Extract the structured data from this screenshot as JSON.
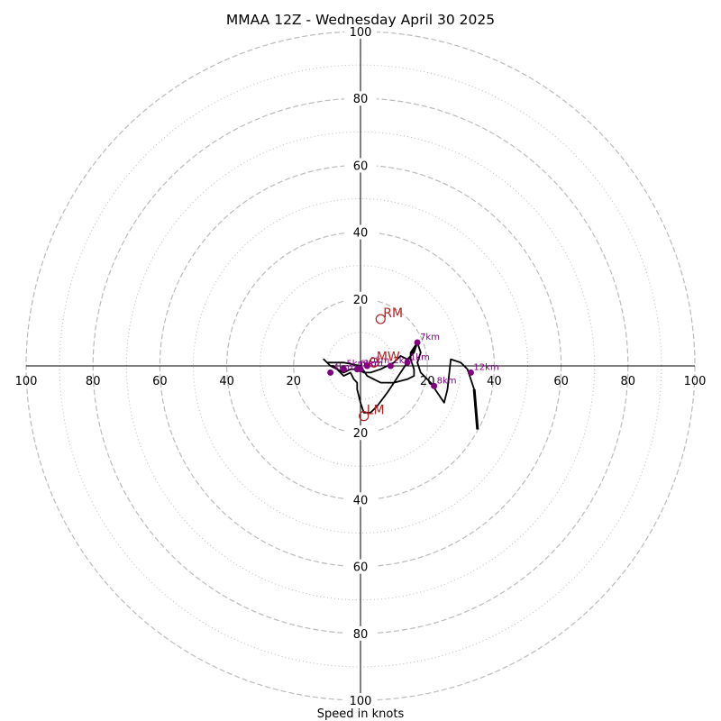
{
  "chart_data": {
    "type": "hodograph",
    "title": "MMAA 12Z - Wednesday April 30 2025",
    "xlabel": "Speed in knots",
    "max_speed": 100,
    "rings_dashed": [
      20,
      40,
      60,
      80,
      100
    ],
    "rings_dotted": [
      10,
      30,
      50,
      70,
      90
    ],
    "tick_labels": [
      "20",
      "40",
      "60",
      "80",
      "100"
    ],
    "hodograph": [
      [
        -11,
        2
      ],
      [
        -10,
        1
      ],
      [
        -9,
        0
      ],
      [
        -8,
        0
      ],
      [
        -7,
        -1
      ],
      [
        -5,
        -3
      ],
      [
        -3,
        -2
      ],
      [
        -2,
        -4
      ],
      [
        -1,
        -5
      ],
      [
        -1,
        -7
      ],
      [
        0,
        -11
      ],
      [
        1,
        -14
      ],
      [
        3,
        -14
      ],
      [
        5,
        -12
      ],
      [
        8,
        -8
      ],
      [
        10,
        -5
      ],
      [
        12,
        -2
      ],
      [
        14,
        1
      ],
      [
        15,
        3
      ],
      [
        16,
        5
      ],
      [
        17,
        7
      ],
      [
        16,
        4
      ],
      [
        14,
        2
      ],
      [
        12,
        3
      ],
      [
        10,
        1
      ],
      [
        8,
        0
      ],
      [
        6,
        -1
      ],
      [
        3,
        -2
      ],
      [
        1,
        -2
      ],
      [
        -1,
        -1
      ],
      [
        -3,
        -1
      ],
      [
        -5,
        -2
      ],
      [
        -7,
        -1
      ],
      [
        -9,
        0
      ],
      [
        -10,
        1
      ],
      [
        -11,
        2
      ],
      [
        -10,
        1
      ],
      [
        -5,
        1
      ],
      [
        0,
        0
      ],
      [
        2,
        -3
      ],
      [
        6,
        -5
      ],
      [
        10,
        -5
      ],
      [
        14,
        -4
      ],
      [
        16,
        -3
      ],
      [
        16,
        -1
      ],
      [
        15,
        2
      ],
      [
        15,
        4
      ],
      [
        17,
        7
      ],
      [
        18,
        4
      ],
      [
        17,
        1
      ],
      [
        18,
        -2
      ],
      [
        21,
        -5
      ],
      [
        23,
        -8
      ],
      [
        25,
        -11
      ],
      [
        26,
        -7
      ],
      [
        27,
        2
      ],
      [
        30,
        1
      ],
      [
        32,
        -1
      ],
      [
        34,
        -7
      ],
      [
        35,
        -19
      ]
    ],
    "height_markers": [
      {
        "label": "0km",
        "u": 2,
        "v": 0
      },
      {
        "label": "1km",
        "u": 14,
        "v": 1
      },
      {
        "label": "2km",
        "u": 9,
        "v": 0
      },
      {
        "label": "3km",
        "u": 0,
        "v": -1
      },
      {
        "label": "4km",
        "u": -9,
        "v": -2
      },
      {
        "label": "5km",
        "u": -5,
        "v": -1
      },
      {
        "label": "6km",
        "u": -1,
        "v": -1
      },
      {
        "label": "7km",
        "u": 17,
        "v": 7
      },
      {
        "label": "8km",
        "u": 22,
        "v": -6
      },
      {
        "label": "12km",
        "u": 33,
        "v": -2
      }
    ],
    "motion_points": [
      {
        "label": "RM",
        "u": 6,
        "v": 14
      },
      {
        "label": "MW",
        "u": 4,
        "v": 1
      },
      {
        "label": "LM",
        "u": 1,
        "v": -15
      }
    ],
    "colors": {
      "hodograph": "#000000",
      "markers": "#800080",
      "motion": "#b22222",
      "rings": "#bbbbbb"
    }
  }
}
